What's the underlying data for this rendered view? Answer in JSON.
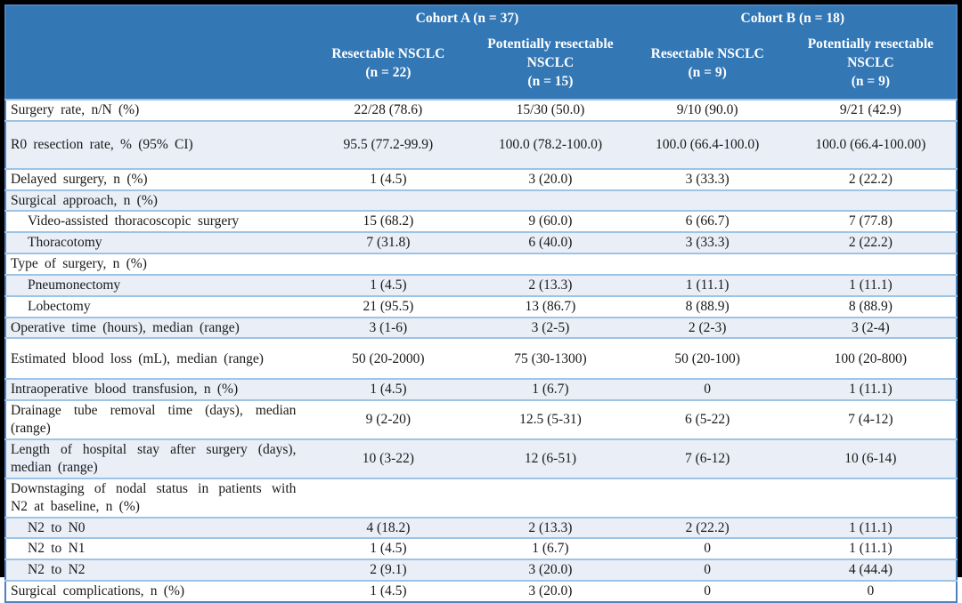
{
  "table": {
    "cohorts": [
      {
        "label": "Cohort A (n = 37)"
      },
      {
        "label": "Cohort B (n = 18)"
      }
    ],
    "columns": [
      {
        "title": "Resectable NSCLC",
        "n": "(n = 22)"
      },
      {
        "title": "Potentially resectable NSCLC",
        "n": "(n = 15)"
      },
      {
        "title": "Resectable NSCLC",
        "n": "(n = 9)"
      },
      {
        "title": "Potentially resectable NSCLC",
        "n": "(n = 9)"
      }
    ],
    "rows": [
      {
        "label": "Surgery rate, n/N (%)",
        "indent": false,
        "values": [
          "22/28 (78.6)",
          "15/30 (50.0)",
          "9/10 (90.0)",
          "9/21 (42.9)"
        ]
      },
      {
        "label": "R0 resection rate, % (95% CI)",
        "indent": false,
        "values": [
          "95.5 (77.2-99.9)",
          "100.0 (78.2-100.0)",
          "100.0 (66.4-100.0)",
          "100.0 (66.4-100.00)"
        ]
      },
      {
        "label": "Delayed surgery, n (%)",
        "indent": false,
        "values": [
          "1 (4.5)",
          "3 (20.0)",
          "3 (33.3)",
          "2 (22.2)"
        ]
      },
      {
        "label": "Surgical approach, n (%)",
        "indent": false,
        "values": [
          "",
          "",
          "",
          ""
        ]
      },
      {
        "label": "Video-assisted thoracoscopic surgery",
        "indent": true,
        "values": [
          "15 (68.2)",
          "9 (60.0)",
          "6 (66.7)",
          "7 (77.8)"
        ]
      },
      {
        "label": "Thoracotomy",
        "indent": true,
        "values": [
          "7 (31.8)",
          "6 (40.0)",
          "3 (33.3)",
          "2 (22.2)"
        ]
      },
      {
        "label": "Type of surgery, n (%)",
        "indent": false,
        "values": [
          "",
          "",
          "",
          ""
        ]
      },
      {
        "label": "Pneumonectomy",
        "indent": true,
        "values": [
          "1 (4.5)",
          "2 (13.3)",
          "1 (11.1)",
          "1 (11.1)"
        ]
      },
      {
        "label": "Lobectomy",
        "indent": true,
        "values": [
          "21 (95.5)",
          "13 (86.7)",
          "8 (88.9)",
          "8 (88.9)"
        ]
      },
      {
        "label": "Operative time (hours), median (range)",
        "indent": false,
        "values": [
          "3 (1-6)",
          "3 (2-5)",
          "2 (2-3)",
          "3 (2-4)"
        ]
      },
      {
        "label": "Estimated blood loss (mL), median (range)",
        "indent": false,
        "values": [
          "50 (20-2000)",
          "75 (30-1300)",
          "50 (20-100)",
          "100 (20-800)"
        ]
      },
      {
        "label": "Intraoperative blood transfusion, n (%)",
        "indent": false,
        "values": [
          "1 (4.5)",
          "1 (6.7)",
          "0",
          "1 (11.1)"
        ]
      },
      {
        "label": "Drainage tube removal time (days), median (range)",
        "indent": false,
        "values": [
          "9 (2-20)",
          "12.5 (5-31)",
          "6 (5-22)",
          "7 (4-12)"
        ]
      },
      {
        "label": "Length of hospital stay after surgery (days), median (range)",
        "indent": false,
        "values": [
          "10 (3-22)",
          "12 (6-51)",
          "7 (6-12)",
          "10 (6-14)"
        ]
      },
      {
        "label": "Downstaging of nodal status in patients with N2 at baseline, n (%)",
        "indent": false,
        "values": [
          "",
          "",
          "",
          ""
        ]
      },
      {
        "label": "N2 to N0",
        "indent": true,
        "values": [
          "4 (18.2)",
          "2 (13.3)",
          "2 (22.2)",
          "1 (11.1)"
        ]
      },
      {
        "label": "N2 to N1",
        "indent": true,
        "values": [
          "1 (4.5)",
          "1 (6.7)",
          "0",
          "1 (11.1)"
        ]
      },
      {
        "label": "N2 to N2",
        "indent": true,
        "values": [
          "2 (9.1)",
          "3 (20.0)",
          "0",
          "4 (44.4)"
        ]
      },
      {
        "label": "Surgical complications, n (%)",
        "indent": false,
        "values": [
          "1 (4.5)",
          "3 (20.0)",
          "0",
          "0"
        ]
      }
    ]
  },
  "colors": {
    "header_bg": "#3377B5",
    "row_alt_bg": "#E9EEF7",
    "row_border": "#9DC3E6",
    "outer_border": "#4E81BD",
    "frame": "#000000",
    "header_text": "#FFFFFF"
  }
}
